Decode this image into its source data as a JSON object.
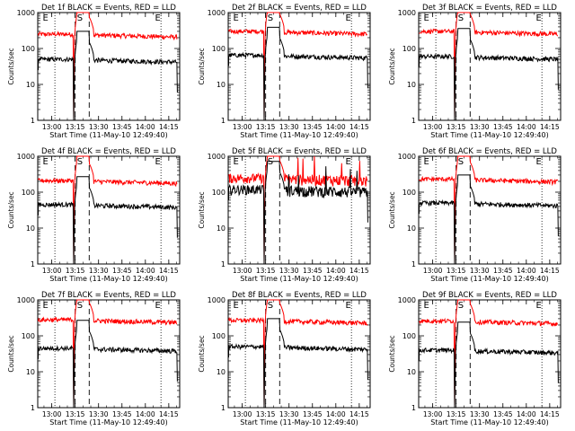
{
  "chart_data": {
    "type": "line",
    "yscale": "log",
    "ylim": [
      1,
      1000
    ],
    "ylabel": "Counts/sec",
    "xlabel": "Start Time (11-May-10 12:49:40)",
    "xlim_minutes": [
      "12:51",
      "14:22"
    ],
    "xticks": [
      "13:00",
      "13:15",
      "13:30",
      "13:45",
      "14:00",
      "14:15"
    ],
    "yticks": [
      "1",
      "10",
      "100",
      "1000"
    ],
    "markers": {
      "E_start": "12:56",
      "S": "13:18",
      "E_end": "14:08",
      "dashed": [
        "13:15",
        "13:24"
      ],
      "dotted": [
        "13:02",
        "14:10"
      ]
    },
    "series_colors": {
      "events": "#000000",
      "lld": "#ff0000"
    },
    "panels": [
      {
        "title": "Det 1f BLACK = Events, RED = LLD",
        "events_level": 50,
        "lld_level": 250,
        "noisy": false
      },
      {
        "title": "Det 2f BLACK = Events, RED = LLD",
        "events_level": 65,
        "lld_level": 300,
        "noisy": false
      },
      {
        "title": "Det 3f BLACK = Events, RED = LLD",
        "events_level": 60,
        "lld_level": 300,
        "noisy": false
      },
      {
        "title": "Det 4f BLACK = Events, RED = LLD",
        "events_level": 45,
        "lld_level": 210,
        "noisy": false
      },
      {
        "title": "Det 5f BLACK = Events, RED = LLD",
        "events_level": 120,
        "lld_level": 250,
        "noisy": true
      },
      {
        "title": "Det 6f BLACK = Events, RED = LLD",
        "events_level": 50,
        "lld_level": 230,
        "noisy": false
      },
      {
        "title": "Det 7f BLACK = Events, RED = LLD",
        "events_level": 45,
        "lld_level": 280,
        "noisy": false
      },
      {
        "title": "Det 8f BLACK = Events, RED = LLD",
        "events_level": 50,
        "lld_level": 270,
        "noisy": false
      },
      {
        "title": "Det 9f BLACK = Events, RED = LLD",
        "events_level": 40,
        "lld_level": 260,
        "noisy": false
      }
    ],
    "labels": {
      "e": "E",
      "s": "S"
    }
  }
}
